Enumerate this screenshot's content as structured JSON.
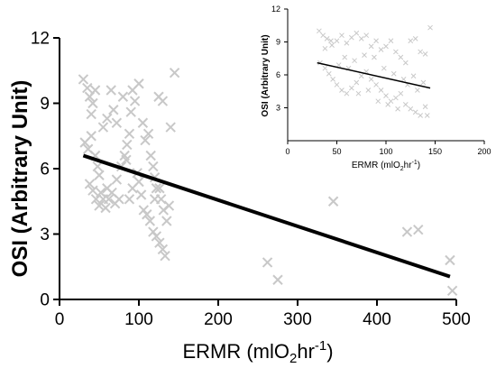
{
  "chart_data": [
    {
      "type": "scatter",
      "title": "",
      "xlabel_main": "ERMR (mlO",
      "xlabel_sub": "2",
      "xlabel_mid": "hr",
      "xlabel_sup": "-1",
      "xlabel_end": ")",
      "ylabel": "OSI (Arbitrary Unit)",
      "xlim": [
        0,
        500
      ],
      "ylim": [
        0,
        12
      ],
      "xticks": [
        "0",
        "100",
        "200",
        "300",
        "400",
        "500"
      ],
      "yticks": [
        "0",
        "3",
        "6",
        "9",
        "12"
      ],
      "marker": "x",
      "marker_color": "#c8c8c8",
      "line_color": "#000000",
      "points": [
        [
          30,
          10.1
        ],
        [
          35,
          9.7
        ],
        [
          38,
          9.3
        ],
        [
          42,
          9.0
        ],
        [
          40,
          8.5
        ],
        [
          45,
          9.6
        ],
        [
          32,
          7.2
        ],
        [
          36,
          6.9
        ],
        [
          40,
          7.5
        ],
        [
          45,
          6.6
        ],
        [
          48,
          6.1
        ],
        [
          50,
          5.7
        ],
        [
          38,
          5.3
        ],
        [
          42,
          5.0
        ],
        [
          46,
          4.6
        ],
        [
          50,
          4.3
        ],
        [
          55,
          4.6
        ],
        [
          58,
          4.2
        ],
        [
          62,
          4.6
        ],
        [
          60,
          5.1
        ],
        [
          66,
          4.9
        ],
        [
          70,
          4.4
        ],
        [
          75,
          4.6
        ],
        [
          72,
          5.5
        ],
        [
          78,
          6.1
        ],
        [
          82,
          6.6
        ],
        [
          85,
          7.1
        ],
        [
          88,
          7.6
        ],
        [
          90,
          8.6
        ],
        [
          95,
          9.1
        ],
        [
          92,
          9.6
        ],
        [
          100,
          9.9
        ],
        [
          65,
          9.6
        ],
        [
          68,
          8.7
        ],
        [
          72,
          8.1
        ],
        [
          80,
          9.3
        ],
        [
          105,
          8.1
        ],
        [
          108,
          7.3
        ],
        [
          112,
          7.6
        ],
        [
          115,
          6.6
        ],
        [
          118,
          6.1
        ],
        [
          120,
          5.6
        ],
        [
          122,
          5.1
        ],
        [
          100,
          5.4
        ],
        [
          103,
          4.8
        ],
        [
          106,
          4.1
        ],
        [
          110,
          3.9
        ],
        [
          114,
          3.6
        ],
        [
          118,
          3.1
        ],
        [
          122,
          2.9
        ],
        [
          126,
          2.6
        ],
        [
          130,
          2.3
        ],
        [
          133,
          2.0
        ],
        [
          128,
          4.6
        ],
        [
          131,
          4.1
        ],
        [
          135,
          3.6
        ],
        [
          138,
          4.3
        ],
        [
          140,
          7.9
        ],
        [
          125,
          9.3
        ],
        [
          130,
          9.1
        ],
        [
          145,
          10.4
        ],
        [
          98,
          5.8
        ],
        [
          92,
          5.1
        ],
        [
          88,
          4.6
        ],
        [
          84,
          6.4
        ],
        [
          120,
          4.6
        ],
        [
          126,
          5.1
        ],
        [
          55,
          7.9
        ],
        [
          60,
          8.3
        ],
        [
          52,
          4.9
        ],
        [
          262,
          1.7
        ],
        [
          275,
          0.9
        ],
        [
          345,
          4.5
        ],
        [
          438,
          3.1
        ],
        [
          452,
          3.2
        ],
        [
          492,
          1.8
        ],
        [
          495,
          0.4
        ]
      ],
      "fit_line": [
        [
          30,
          6.6
        ],
        [
          492,
          1.05
        ]
      ]
    },
    {
      "type": "scatter",
      "title": "",
      "xlabel_main": "ERMR (mlO",
      "xlabel_sub": "2",
      "xlabel_mid": "hr",
      "xlabel_sup": "-1",
      "xlabel_end": ")",
      "ylabel": "OSI (Arbitrary Unit)",
      "xlim": [
        0,
        200
      ],
      "ylim": [
        0,
        12
      ],
      "xticks": [
        "0",
        "50",
        "100",
        "150",
        "200"
      ],
      "yticks": [
        "3",
        "6",
        "9",
        "12"
      ],
      "marker": "x",
      "marker_color": "#c8c8c8",
      "line_color": "#000000",
      "points": [
        [
          32,
          10.0
        ],
        [
          36,
          9.6
        ],
        [
          40,
          9.3
        ],
        [
          44,
          9.1
        ],
        [
          38,
          8.4
        ],
        [
          45,
          8.7
        ],
        [
          50,
          9.1
        ],
        [
          55,
          9.6
        ],
        [
          60,
          8.9
        ],
        [
          65,
          9.4
        ],
        [
          70,
          9.8
        ],
        [
          75,
          9.3
        ],
        [
          80,
          9.6
        ],
        [
          85,
          8.6
        ],
        [
          90,
          9.1
        ],
        [
          95,
          8.3
        ],
        [
          100,
          8.6
        ],
        [
          105,
          9.1
        ],
        [
          110,
          8.1
        ],
        [
          115,
          7.6
        ],
        [
          120,
          7.1
        ],
        [
          125,
          9.1
        ],
        [
          130,
          9.3
        ],
        [
          135,
          8.1
        ],
        [
          140,
          7.9
        ],
        [
          145,
          10.3
        ],
        [
          33,
          7.1
        ],
        [
          38,
          6.6
        ],
        [
          42,
          6.1
        ],
        [
          46,
          5.6
        ],
        [
          50,
          5.1
        ],
        [
          55,
          4.6
        ],
        [
          60,
          4.3
        ],
        [
          65,
          4.8
        ],
        [
          70,
          5.3
        ],
        [
          75,
          5.9
        ],
        [
          80,
          6.3
        ],
        [
          85,
          5.6
        ],
        [
          90,
          5.1
        ],
        [
          95,
          4.6
        ],
        [
          100,
          4.1
        ],
        [
          105,
          3.6
        ],
        [
          110,
          3.9
        ],
        [
          115,
          4.3
        ],
        [
          120,
          3.3
        ],
        [
          125,
          2.9
        ],
        [
          130,
          2.6
        ],
        [
          135,
          2.3
        ],
        [
          140,
          3.1
        ],
        [
          58,
          7.6
        ],
        [
          68,
          7.3
        ],
        [
          78,
          7.8
        ],
        [
          88,
          7.6
        ],
        [
          98,
          6.6
        ],
        [
          108,
          6.1
        ],
        [
          118,
          5.6
        ],
        [
          128,
          5.9
        ],
        [
          138,
          5.3
        ],
        [
          52,
          6.9
        ],
        [
          62,
          6.6
        ],
        [
          72,
          4.3
        ],
        [
          82,
          4.6
        ],
        [
          92,
          3.6
        ],
        [
          102,
          3.3
        ],
        [
          112,
          2.9
        ],
        [
          122,
          5.1
        ],
        [
          132,
          4.6
        ],
        [
          142,
          2.3
        ]
      ],
      "fit_line": [
        [
          30,
          7.1
        ],
        [
          145,
          4.8
        ]
      ]
    }
  ]
}
